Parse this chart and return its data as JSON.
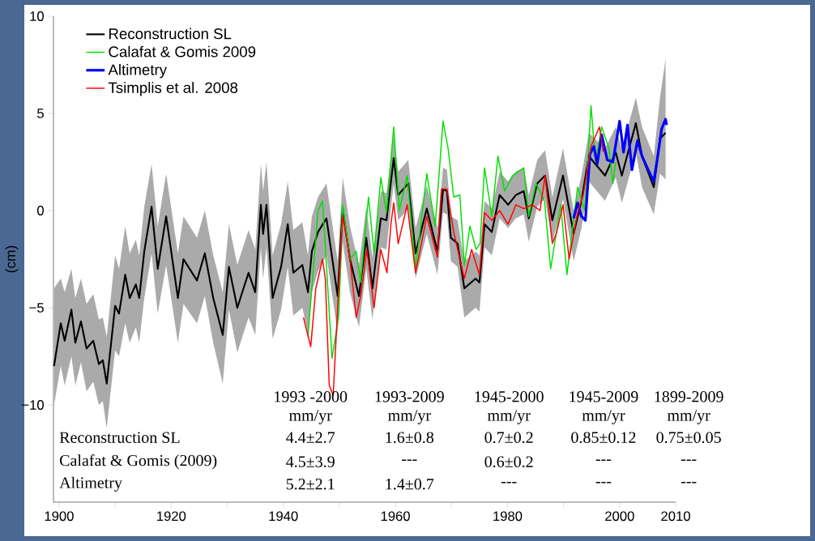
{
  "chart_data": {
    "type": "line",
    "ylabel": "(cm)",
    "xlim": [
      1899,
      2010
    ],
    "ylim": [
      -15,
      10
    ],
    "xticks": [
      1900,
      {
        "value": 1910,
        "label": null
      },
      1920,
      {
        "value": 1930,
        "label": null
      },
      1940,
      {
        "value": 1950,
        "label": null
      },
      1960,
      {
        "value": 1970,
        "label": null
      },
      1980,
      {
        "value": 1990,
        "label": null
      },
      2000,
      2010
    ],
    "yticks": [
      {
        "value": -10,
        "label": "−10"
      },
      {
        "value": -5,
        "label": "−5"
      },
      0,
      5,
      10
    ],
    "legend": "top left",
    "grid": false,
    "marker": "none",
    "series": [
      {
        "name": "Reconstruction SL",
        "color": "#000000",
        "x": [
          1899.1,
          1900.3,
          1901,
          1902.2,
          1902.9,
          1903.9,
          1904.9,
          1906.1,
          1907.1,
          1907.8,
          1908.5,
          1910.0,
          1910.7,
          1911.8,
          1912.6,
          1913.7,
          1914.3,
          1915.2,
          1916.5,
          1917.6,
          1919.1,
          1921.2,
          1922.2,
          1924.6,
          1926.0,
          1927.5,
          1929.2,
          1930.3,
          1931.8,
          1933.8,
          1935.0,
          1936.0,
          1936.4,
          1937.0,
          1938.1,
          1939.6,
          1940.8,
          1941.8,
          1943.4,
          1944.4,
          1945.1,
          1946.2,
          1947.7,
          1949.7,
          1950.6,
          1951.9,
          1953.5,
          1954.8,
          1955.9,
          1957.4,
          1958.4,
          1959.7,
          1960.5,
          1962.3,
          1963.6,
          1965.6,
          1967.5,
          1968.5,
          1969.2,
          1969.9,
          1971.1,
          1972.3,
          1974.3,
          1975.0,
          1975.9,
          1977.2,
          1978.6,
          1980.1,
          1981.5,
          1982.9,
          1983.8,
          1985.3,
          1986.7,
          1988.0,
          1989.9,
          1991.8,
          1993.2,
          1994.5,
          1997.4,
          1999.3,
          2000.4,
          2002.9,
          2004.0,
          2006.1,
          2007.2,
          2008.2
        ],
        "values": [
          -8.0,
          -5.8,
          -6.7,
          -5.1,
          -6.8,
          -5.7,
          -7.1,
          -6.7,
          -7.9,
          -7.7,
          -8.9,
          -4.9,
          -5.3,
          -3.3,
          -4.5,
          -3.8,
          -4.5,
          -2.1,
          0.2,
          -3.0,
          -0.3,
          -4.5,
          -2.5,
          -3.6,
          -2.2,
          -4.5,
          -6.4,
          -2.9,
          -5.0,
          -3.2,
          -4.2,
          0.3,
          -1.2,
          0.3,
          -4.5,
          -2.9,
          -0.7,
          -3.2,
          -2.8,
          -4.2,
          -2.1,
          -1.1,
          -0.4,
          -4.4,
          0.1,
          -2.5,
          -4.4,
          -1.4,
          -4.0,
          -0.4,
          -0.5,
          2.7,
          0.8,
          1.4,
          -2.2,
          0.1,
          -2.1,
          1.1,
          1.0,
          -1.4,
          -1.7,
          -4.0,
          -3.5,
          -3.7,
          -0.7,
          -1.1,
          0.8,
          0.3,
          0.8,
          1.0,
          -0.4,
          1.4,
          1.8,
          -0.5,
          1.8,
          -1.2,
          0.5,
          2.8,
          1.8,
          3.0,
          1.8,
          4.5,
          2.8,
          1.2,
          3.7,
          4.0
        ],
        "lower": [
          -10.0,
          -8.0,
          -9.0,
          -7.5,
          -9.0,
          -7.8,
          -9.3,
          -8.8,
          -10.0,
          -9.8,
          -11.2,
          -7.2,
          -7.5,
          -5.8,
          -6.8,
          -6.0,
          -6.8,
          -4.5,
          -2.2,
          -5.3,
          -2.8,
          -6.8,
          -4.8,
          -5.8,
          -4.4,
          -6.8,
          -8.9,
          -5.1,
          -7.3,
          -5.5,
          -6.4,
          -1.9,
          -3.5,
          -1.9,
          -6.6,
          -5.1,
          -2.9,
          -5.4,
          -5.0,
          -6.3,
          -4.2,
          -3.1,
          -2.3,
          -6.3,
          -1.6,
          -4.2,
          -6.0,
          -3.0,
          -5.6,
          -1.9,
          -2.0,
          1.4,
          -0.5,
          0.1,
          -3.5,
          -1.2,
          -3.3,
          -0.1,
          -0.2,
          -2.6,
          -2.9,
          -5.5,
          -5.0,
          -5.2,
          -1.9,
          -2.3,
          -0.4,
          -0.9,
          -0.4,
          -0.2,
          -1.6,
          0.2,
          0.6,
          -1.7,
          0.6,
          -2.6,
          -0.9,
          1.5,
          0.5,
          1.7,
          0.4,
          3.0,
          1.2,
          -0.2,
          1.9,
          1.6
        ],
        "upper": [
          -4.0,
          -3.5,
          -4.2,
          -3.0,
          -4.5,
          -3.5,
          -4.8,
          -4.3,
          -5.6,
          -5.5,
          -6.5,
          -2.3,
          -3.0,
          -0.8,
          -2.2,
          -1.5,
          -2.3,
          0.2,
          2.4,
          -0.8,
          1.9,
          -2.2,
          -0.3,
          -1.4,
          0.0,
          -2.3,
          -4.2,
          -0.7,
          -2.8,
          -1.0,
          -2.0,
          2.4,
          1.0,
          2.5,
          -2.3,
          -0.7,
          1.5,
          -1.0,
          -0.6,
          -2.3,
          -0.3,
          0.7,
          1.4,
          -2.6,
          1.7,
          -0.8,
          -2.8,
          0.2,
          -2.4,
          1.0,
          0.9,
          3.9,
          2.0,
          2.6,
          -0.9,
          1.3,
          -0.9,
          2.2,
          2.1,
          -0.3,
          -0.5,
          -2.6,
          -2.1,
          -2.3,
          0.5,
          0.1,
          2.0,
          1.5,
          2.0,
          2.2,
          0.8,
          2.6,
          3.1,
          0.7,
          3.2,
          0.0,
          1.8,
          4.0,
          3.2,
          4.3,
          3.2,
          5.8,
          4.3,
          2.8,
          5.8,
          7.8
        ]
      },
      {
        "name": "Calafat & Gomis 2009",
        "color": "#00e000",
        "x": [
          1944.4,
          1946.2,
          1947.0,
          1948.7,
          1949.9,
          1950.6,
          1951.9,
          1953.0,
          1953.8,
          1955.2,
          1956.2,
          1957.4,
          1958.4,
          1959.7,
          1960.7,
          1962.1,
          1963.6,
          1965.6,
          1967.1,
          1968.5,
          1969.4,
          1970.4,
          1971.5,
          1972.3,
          1973.3,
          1974.4,
          1975.1,
          1975.9,
          1977.2,
          1978.3,
          1979.5,
          1980.9,
          1982.9,
          1983.8,
          1985.1,
          1986.6,
          1987.7,
          1989.5,
          1990.6,
          1992.5,
          1993.8,
          1994.9,
          1995.7,
          1996.8,
          1998.1,
          1998.8,
          1999.3
        ],
        "values": [
          -6.5,
          0.0,
          0.5,
          -7.6,
          -5.4,
          0.3,
          -2.5,
          -2.1,
          -3.7,
          0.7,
          -2.2,
          1.7,
          -0.1,
          4.3,
          0.0,
          1.8,
          -3.0,
          1.9,
          -0.8,
          4.6,
          3.2,
          0.7,
          0.8,
          -2.8,
          -0.8,
          -2.0,
          -1.7,
          2.2,
          -0.3,
          2.8,
          1.0,
          1.8,
          2.2,
          -0.3,
          1.4,
          0.5,
          -3.0,
          0.3,
          -3.3,
          1.2,
          0.0,
          5.4,
          2.5,
          4.3,
          3.2,
          1.4,
          2.5
        ]
      },
      {
        "name": "Altimetry",
        "color": "#0000ff",
        "x": [
          1991.8,
          1992.5,
          1993.2,
          1993.9,
          1994.7,
          1995.4,
          1996.0,
          1996.8,
          1997.8,
          1998.8,
          2000.0,
          2000.7,
          2001.4,
          2002.2,
          2003.2,
          2004.0,
          2005.1,
          2006.1,
          2006.8,
          2007.5,
          2008.2,
          2008.4
        ],
        "values": [
          -0.4,
          0.4,
          -0.3,
          -0.5,
          2.9,
          3.3,
          2.4,
          3.9,
          2.6,
          2.5,
          4.6,
          3.0,
          4.4,
          2.1,
          3.6,
          2.8,
          2.1,
          1.5,
          2.8,
          4.2,
          4.7,
          4.4
        ]
      },
      {
        "name": "Tsimplis et al. 2008",
        "color": "#ff0000",
        "x": [
          1943.6,
          1944.9,
          1945.8,
          1947.0,
          1947.5,
          1948.2,
          1948.9,
          1949.7,
          1950.6,
          1951.9,
          1953.0,
          1953.8,
          1954.9,
          1956.2,
          1957.4,
          1958.5,
          1959.2,
          1959.7,
          1960.5,
          1962.1,
          1963.6,
          1965.6,
          1967.5,
          1968.2,
          1969.2,
          1970.4,
          1972.3,
          1973.6,
          1975.0,
          1975.9,
          1977.2,
          1978.6,
          1980.1,
          1981.5,
          1982.9,
          1984.4,
          1985.8,
          1986.7,
          1988.0,
          1988.7,
          1989.9,
          1991.0,
          1992.5,
          1993.5,
          1994.9,
          1996.4,
          1997.1
        ],
        "values": [
          -5.5,
          -7.0,
          -4.0,
          -2.5,
          -3.5,
          -9.0,
          -9.5,
          -5.0,
          -0.3,
          -2.5,
          -5.5,
          -4.4,
          -2.0,
          -5.0,
          -2.0,
          -3.2,
          -0.7,
          0.4,
          -1.7,
          0.3,
          -3.2,
          -0.3,
          -2.4,
          1.1,
          1.1,
          -1.1,
          -3.5,
          -2.0,
          -3.3,
          -0.1,
          -0.5,
          0.0,
          -0.7,
          0.3,
          0.1,
          0.3,
          0.0,
          1.8,
          -1.7,
          -1.2,
          0.3,
          -2.5,
          -0.1,
          0.8,
          3.3,
          4.3,
          3.0
        ]
      }
    ],
    "annotations": [
      "1993 -2000",
      "1993-2009",
      "1945-2000",
      "1945-2009",
      "1899-2009",
      "mm/yr",
      "mm/yr",
      "mm/yr",
      "mm/yr",
      "mm/yr",
      "Reconstruction SL",
      "4.4±2.7",
      "1.6±0.8",
      "0.7±0.2",
      "0.85±0.12",
      "0.75±0.05",
      "Calafat & Gomis  (2009)",
      "4.5±3.9",
      "---",
      "0.6±0.2",
      "---",
      "---",
      "Altimetry",
      "5.2±2.1",
      "1.4±0.7",
      "---",
      "---",
      "---"
    ]
  }
}
